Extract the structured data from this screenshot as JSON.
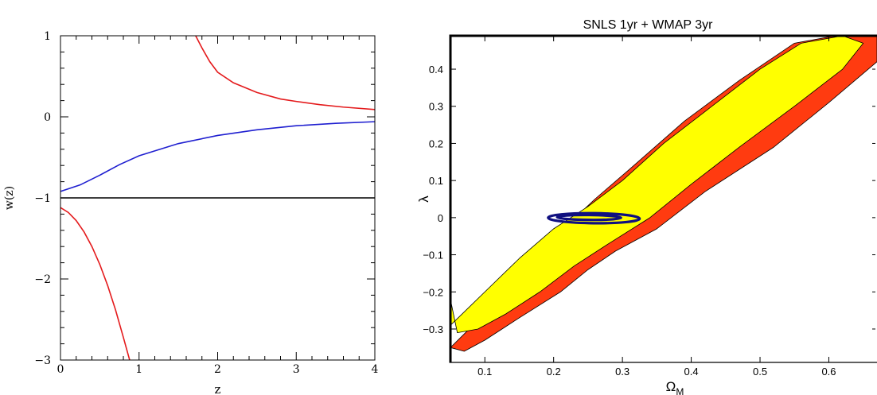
{
  "chart_data": [
    {
      "type": "line",
      "title": "",
      "xlabel": "z",
      "ylabel": "w(z)",
      "xlim": [
        0,
        4
      ],
      "ylim": [
        -3,
        1
      ],
      "x_ticks": [
        0,
        1,
        2,
        3,
        4
      ],
      "x_tick_labels": [
        "0",
        "1",
        "2",
        "3",
        "4"
      ],
      "y_ticks": [
        -3,
        -2,
        -1,
        0,
        1
      ],
      "y_tick_labels": [
        "−3",
        "−2",
        "−1",
        "0",
        "1"
      ],
      "grid": false,
      "series": [
        {
          "color": "#e41a1c",
          "x": [
            1.72,
            1.8,
            1.9,
            2.0,
            2.2,
            2.5,
            2.8,
            3.0,
            3.3,
            3.6,
            4.0
          ],
          "y": [
            1.0,
            0.85,
            0.68,
            0.55,
            0.42,
            0.3,
            0.22,
            0.19,
            0.15,
            0.12,
            0.09
          ]
        },
        {
          "color": "#1f1fd0",
          "x": [
            0,
            0.25,
            0.5,
            0.75,
            1.0,
            1.5,
            2.0,
            2.5,
            3.0,
            3.5,
            4.0
          ],
          "y": [
            -0.92,
            -0.84,
            -0.72,
            -0.59,
            -0.48,
            -0.33,
            -0.23,
            -0.16,
            -0.11,
            -0.08,
            -0.06
          ]
        },
        {
          "color": "#000000",
          "x": [
            0,
            4
          ],
          "y": [
            -1,
            -1
          ]
        },
        {
          "color": "#e41a1c",
          "x": [
            0,
            0.1,
            0.2,
            0.3,
            0.4,
            0.5,
            0.6,
            0.7,
            0.8,
            0.88
          ],
          "y": [
            -1.12,
            -1.18,
            -1.28,
            -1.42,
            -1.6,
            -1.82,
            -2.08,
            -2.38,
            -2.72,
            -3.0
          ]
        }
      ]
    },
    {
      "type": "area",
      "title": "SNLS 1yr + WMAP 3yr",
      "xlabel": "Ω",
      "xlabel_subscript": "M",
      "ylabel": "λ",
      "xlim": [
        0.05,
        0.67
      ],
      "ylim": [
        -0.39,
        0.49
      ],
      "x_ticks": [
        0.1,
        0.2,
        0.3,
        0.4,
        0.5,
        0.6
      ],
      "x_tick_labels": [
        "0.1",
        "0.2",
        "0.3",
        "0.4",
        "0.5",
        "0.6"
      ],
      "y_ticks": [
        -0.3,
        -0.2,
        -0.1,
        0,
        0.1,
        0.2,
        0.3,
        0.4
      ],
      "y_tick_labels": [
        "−0.3",
        "−0.2",
        "−0.1",
        "0",
        "0.1",
        "0.2",
        "0.3",
        "0.4"
      ],
      "grid": false,
      "colors": {
        "outer_contour": "#ff3b10",
        "inner_contour": "#ffff00",
        "ellipse": "#101080"
      },
      "series": [
        {
          "color": "#ff3b10",
          "x": [
            0.05,
            0.05,
            0.11,
            0.17,
            0.22,
            0.26,
            0.31,
            0.39,
            0.47,
            0.55,
            0.61,
            0.67,
            0.67,
            0.6,
            0.52,
            0.42,
            0.35,
            0.29,
            0.25,
            0.21,
            0.15,
            0.1,
            0.07,
            0.05
          ],
          "y": [
            -0.19,
            -0.35,
            -0.24,
            -0.11,
            -0.02,
            0.05,
            0.13,
            0.26,
            0.37,
            0.47,
            0.49,
            0.49,
            0.42,
            0.31,
            0.19,
            0.07,
            -0.03,
            -0.09,
            -0.14,
            -0.2,
            -0.27,
            -0.33,
            -0.36,
            -0.35
          ]
        },
        {
          "color": "#ffff00",
          "x": [
            0.05,
            0.05,
            0.1,
            0.15,
            0.2,
            0.25,
            0.3,
            0.36,
            0.43,
            0.5,
            0.56,
            0.62,
            0.65,
            0.62,
            0.55,
            0.47,
            0.4,
            0.34,
            0.28,
            0.23,
            0.18,
            0.13,
            0.09,
            0.06
          ],
          "y": [
            -0.22,
            -0.29,
            -0.2,
            -0.11,
            -0.03,
            0.03,
            0.1,
            0.2,
            0.3,
            0.4,
            0.47,
            0.49,
            0.47,
            0.4,
            0.3,
            0.19,
            0.09,
            0.0,
            -0.07,
            -0.13,
            -0.2,
            -0.26,
            -0.3,
            -0.31
          ]
        },
        {
          "color": "#101080",
          "type": "ellipse",
          "x": [
            0.192,
            0.257,
            0.325,
            0.257
          ],
          "y": [
            0.0,
            0.012,
            0.0,
            -0.015
          ]
        },
        {
          "color": "#101080",
          "type": "ellipse",
          "x": [
            0.205,
            0.25,
            0.298,
            0.25
          ],
          "y": [
            0.0,
            0.007,
            0.0,
            -0.006
          ]
        }
      ]
    }
  ]
}
